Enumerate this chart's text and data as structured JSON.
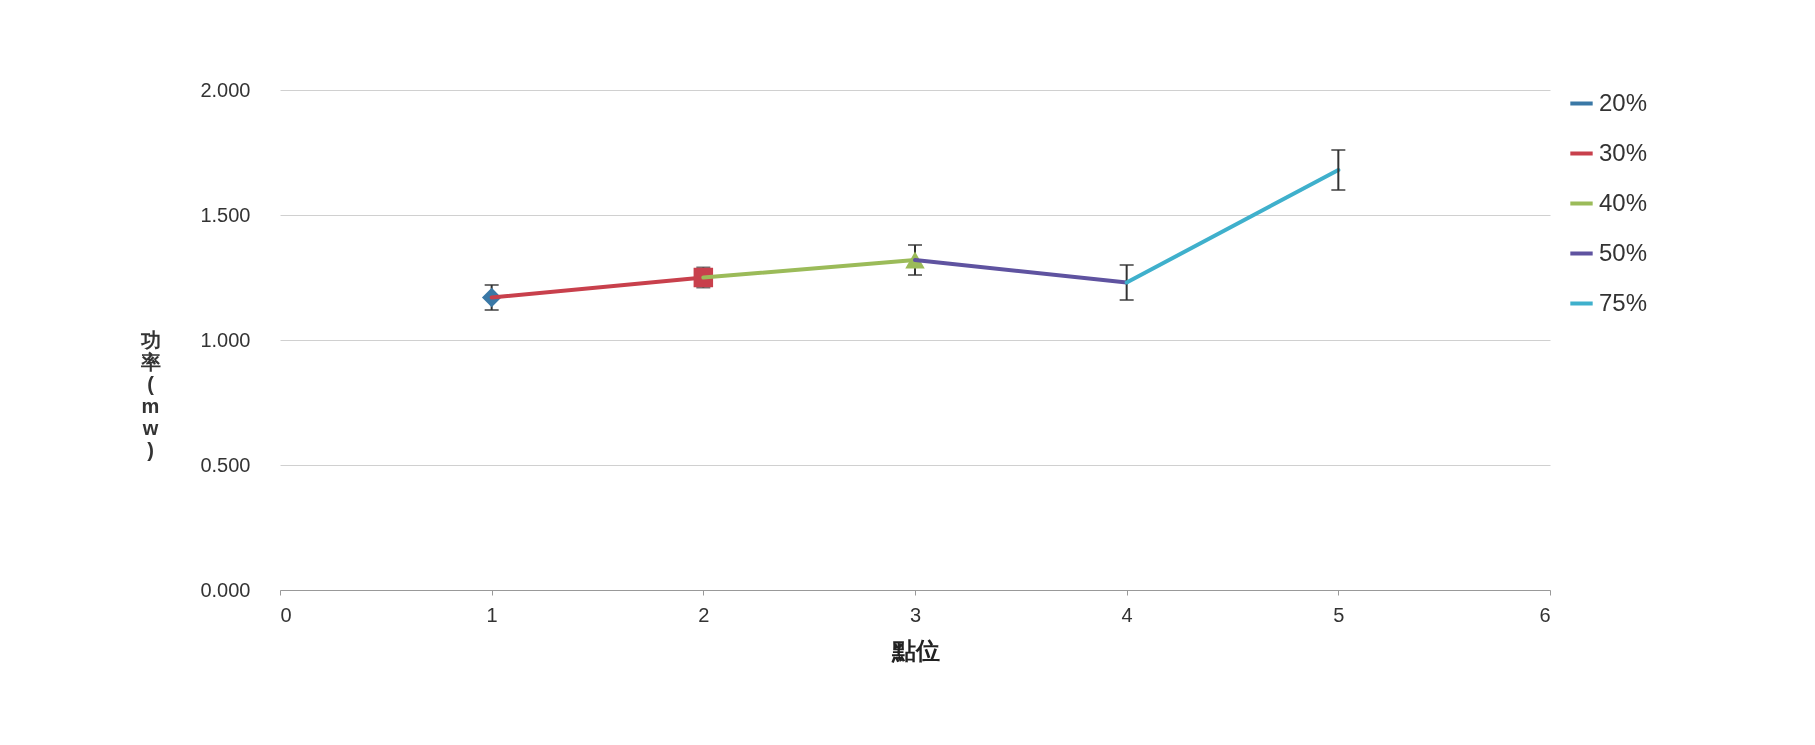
{
  "chart_data": {
    "type": "line",
    "xlabel": "點位",
    "ylabel": "功率(mw)",
    "xlim": [
      0,
      6
    ],
    "xticks": [
      0,
      1,
      2,
      3,
      4,
      5,
      6
    ],
    "ylim": [
      0,
      2
    ],
    "yticks": [
      {
        "value": 0,
        "label": "0.000"
      },
      {
        "value": 0.5,
        "label": "0.500"
      },
      {
        "value": 1,
        "label": "1.000"
      },
      {
        "value": 1.5,
        "label": "1.500"
      },
      {
        "value": 2,
        "label": "2.000"
      }
    ],
    "grid": "y",
    "legend": "right",
    "series": [
      {
        "name": "20%",
        "color": "#3a78a6",
        "marker": "diamond",
        "x": [
          1
        ],
        "values": [
          1.17
        ],
        "errors": [
          0.05
        ]
      },
      {
        "name": "30%",
        "color": "#c8404c",
        "marker": "square",
        "x": [
          1,
          2
        ],
        "values": [
          1.17,
          1.25
        ],
        "errors": [
          null,
          0.04
        ]
      },
      {
        "name": "40%",
        "color": "#9bbb59",
        "marker": "triangle",
        "x": [
          2,
          3
        ],
        "values": [
          1.25,
          1.32
        ],
        "errors": [
          null,
          0.06
        ]
      },
      {
        "name": "50%",
        "color": "#5f53a0",
        "x": [
          3,
          4
        ],
        "values": [
          1.32,
          1.23
        ],
        "errors": [
          null,
          0.07
        ]
      },
      {
        "name": "75%",
        "color": "#3fb0cc",
        "x": [
          4,
          5
        ],
        "values": [
          1.23,
          1.68
        ],
        "errors": [
          null,
          0.08
        ]
      }
    ]
  }
}
